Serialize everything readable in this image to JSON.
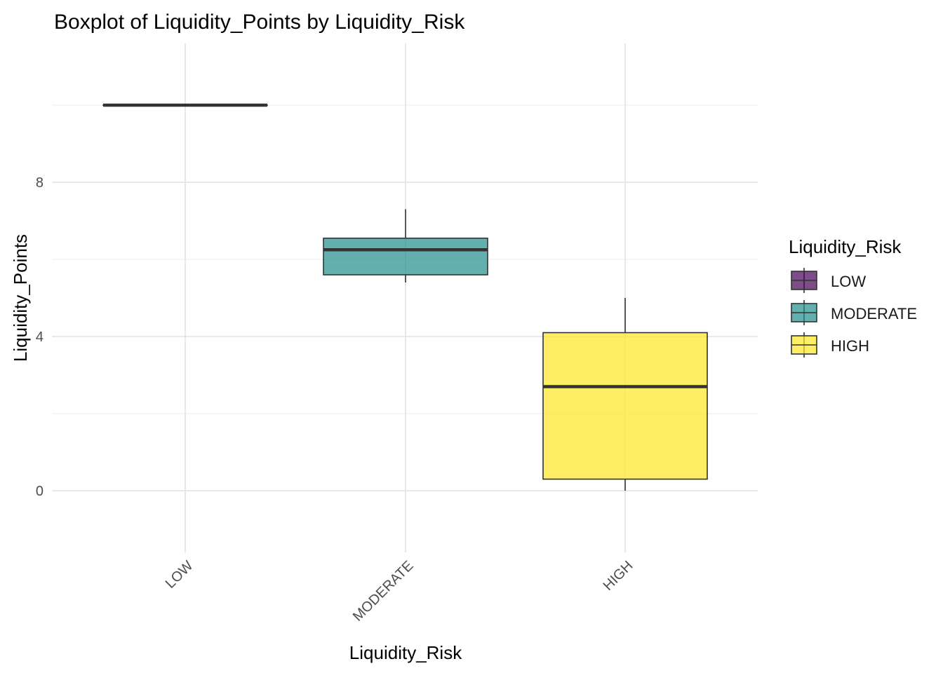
{
  "chart_data": {
    "type": "boxplot",
    "title": "Boxplot of Liquidity_Points by Liquidity_Risk",
    "xlabel": "Liquidity_Risk",
    "ylabel": "Liquidity_Points",
    "ylim": [
      -1.5,
      11.6
    ],
    "yticks": [
      0,
      4,
      8
    ],
    "grid": true,
    "legend": {
      "title": "Liquidity_Risk",
      "position": "right"
    },
    "categories": [
      "LOW",
      "MODERATE",
      "HIGH"
    ],
    "boxes": [
      {
        "name": "LOW",
        "color": "#440154",
        "whisker_low": 10.0,
        "q1": 10.0,
        "median": 10.0,
        "q3": 10.0,
        "whisker_high": 10.0
      },
      {
        "name": "MODERATE",
        "color": "#21908C",
        "whisker_low": 5.4,
        "q1": 5.6,
        "median": 6.25,
        "q3": 6.55,
        "whisker_high": 7.3
      },
      {
        "name": "HIGH",
        "color": "#FDE725",
        "whisker_low": 0.0,
        "q1": 0.3,
        "median": 2.7,
        "q3": 4.1,
        "whisker_high": 5.0
      }
    ]
  }
}
